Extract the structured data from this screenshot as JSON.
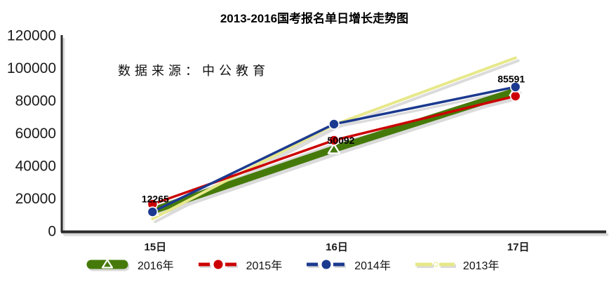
{
  "chart": {
    "title": "2013-2016国考报名单日增长走势图",
    "source_note": "数据来源：中公教育"
  },
  "chart_data": {
    "type": "line",
    "title": "2013-2016国考报名单日增长走势图",
    "annotation": "数据来源：中公教育",
    "categories": [
      "15日",
      "16日",
      "17日"
    ],
    "series": [
      {
        "name": "2016年",
        "color": "#457A0A",
        "line_width": 10,
        "marker": "triangle",
        "legend_swatch": "thick-triangle",
        "values": [
          12265,
          50092,
          85591
        ],
        "data_labels": [
          "12265",
          "50092",
          "85591"
        ]
      },
      {
        "name": "2015年",
        "color": "#CC0000",
        "line_width": 3.5,
        "marker": "circle",
        "legend_swatch": "dash-dot",
        "values": [
          16300,
          55500,
          82600
        ]
      },
      {
        "name": "2014年",
        "color": "#1B3A8F",
        "line_width": 3.5,
        "marker": "circle",
        "legend_swatch": "dash-dot",
        "values": [
          11600,
          65400,
          88200
        ]
      },
      {
        "name": "2013年",
        "color": "#E7E88A",
        "line_width": 4,
        "marker": "none",
        "legend_swatch": "dash-dash",
        "values": [
          7300,
          65000,
          106000
        ]
      }
    ],
    "xlabel": "",
    "ylabel": "",
    "ylim": [
      0,
      120000
    ],
    "yticks": [
      0,
      20000,
      40000,
      60000,
      80000,
      100000,
      120000
    ],
    "grid": false,
    "legend_position": "bottom",
    "axis_color": "#2B2B2B",
    "shadow_color": "#DBDBDB",
    "label_color": "#000000"
  }
}
